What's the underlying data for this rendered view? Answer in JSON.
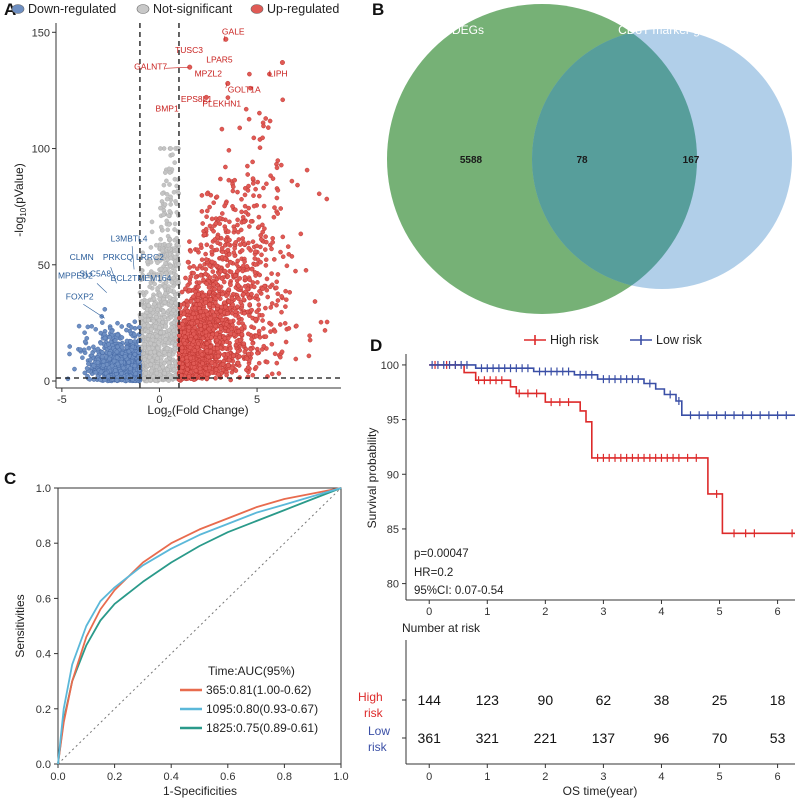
{
  "chart_data": [
    {
      "panel": "A",
      "type": "scatter",
      "title": "",
      "xlabel": "Log2(Fold Change)",
      "ylabel": "-log10(pValue)",
      "xlim": [
        -5.3,
        9.3
      ],
      "ylim": [
        -3,
        154
      ],
      "xticks": [
        -5,
        0,
        5
      ],
      "yticks": [
        0,
        50,
        100,
        150
      ],
      "thresholds": {
        "fc": [
          -1,
          1
        ],
        "p": 1.3
      },
      "legend": [
        {
          "label": "Down-regulated",
          "color": "#6e8fc2"
        },
        {
          "label": "Not-significant",
          "color": "#c8c8c8"
        },
        {
          "label": "Up-regulated",
          "color": "#e05a55"
        }
      ],
      "highlight_points": [
        {
          "x": 6.3,
          "y": 137,
          "color": "#e05a55"
        },
        {
          "x": 3.4,
          "y": 147,
          "color": "#e05a55"
        },
        {
          "x": 1.55,
          "y": 135,
          "color": "#e05a55"
        },
        {
          "x": 3.5,
          "y": 128,
          "color": "#e05a55"
        },
        {
          "x": 2.4,
          "y": 122,
          "color": "#e05a55"
        }
      ],
      "labels_up": [
        {
          "text": "GALE",
          "x": 3.2,
          "y": 149
        },
        {
          "text": "TUSC3",
          "x": 0.8,
          "y": 141
        },
        {
          "text": "LPAR5",
          "x": 2.4,
          "y": 137
        },
        {
          "text": "GALNT7",
          "x": -1.3,
          "y": 134
        },
        {
          "text": "MPZL2",
          "x": 1.8,
          "y": 131
        },
        {
          "text": "LIPH",
          "x": 5.6,
          "y": 131
        },
        {
          "text": "GOLT1A",
          "x": 3.5,
          "y": 124
        },
        {
          "text": "EPS8L1",
          "x": 1.1,
          "y": 120
        },
        {
          "text": "PLEKHN1",
          "x": 2.2,
          "y": 118
        },
        {
          "text": "BMP1",
          "x": -0.2,
          "y": 116
        }
      ],
      "labels_down": [
        {
          "text": "L3MBTL4",
          "x": -2.5,
          "y": 60
        },
        {
          "text": "CLMN",
          "x": -4.6,
          "y": 52
        },
        {
          "text": "PRKCQ",
          "x": -2.9,
          "y": 52
        },
        {
          "text": "LRRC2",
          "x": -1.2,
          "y": 52
        },
        {
          "text": "SLC5A8",
          "x": -4.1,
          "y": 45
        },
        {
          "text": "MPPED2",
          "x": -5.2,
          "y": 44
        },
        {
          "text": "BCL2",
          "x": -2.5,
          "y": 43
        },
        {
          "text": "TMEM164",
          "x": -1.4,
          "y": 43
        },
        {
          "text": "FOXP2",
          "x": -4.8,
          "y": 35
        }
      ]
    },
    {
      "panel": "B",
      "type": "venn",
      "sets": [
        {
          "name": "DEGs",
          "only": 5588,
          "color": "#6aaa6a"
        },
        {
          "name": "CD8T marker genes",
          "only": 167,
          "color": "#a6c8e6"
        }
      ],
      "intersection": 78
    },
    {
      "panel": "C",
      "type": "line",
      "xlabel": "1-Specificities",
      "ylabel": "Sensitivities",
      "xlim": [
        0,
        1
      ],
      "ylim": [
        0,
        1
      ],
      "ticks": [
        "0.0",
        "0.2",
        "0.4",
        "0.6",
        "0.8",
        "1.0"
      ],
      "legend_title": "Time:AUC(95%)",
      "series": [
        {
          "name": "365:0.81(1.00-0.62)",
          "color": "#e86b4e",
          "points": [
            [
              0,
              0
            ],
            [
              0.02,
              0.15
            ],
            [
              0.05,
              0.3
            ],
            [
              0.1,
              0.46
            ],
            [
              0.15,
              0.56
            ],
            [
              0.2,
              0.63
            ],
            [
              0.3,
              0.73
            ],
            [
              0.4,
              0.8
            ],
            [
              0.5,
              0.85
            ],
            [
              0.6,
              0.89
            ],
            [
              0.7,
              0.93
            ],
            [
              0.8,
              0.96
            ],
            [
              0.9,
              0.98
            ],
            [
              1,
              1
            ]
          ]
        },
        {
          "name": "1095:0.80(0.93-0.67)",
          "color": "#5bb8d9",
          "points": [
            [
              0,
              0
            ],
            [
              0.02,
              0.2
            ],
            [
              0.05,
              0.36
            ],
            [
              0.1,
              0.5
            ],
            [
              0.15,
              0.59
            ],
            [
              0.2,
              0.64
            ],
            [
              0.3,
              0.72
            ],
            [
              0.4,
              0.78
            ],
            [
              0.5,
              0.83
            ],
            [
              0.6,
              0.87
            ],
            [
              0.7,
              0.91
            ],
            [
              0.8,
              0.94
            ],
            [
              0.9,
              0.97
            ],
            [
              1,
              1
            ]
          ]
        },
        {
          "name": "1825:0.75(0.89-0.61)",
          "color": "#2a9a8a",
          "points": [
            [
              0,
              0
            ],
            [
              0.02,
              0.16
            ],
            [
              0.05,
              0.3
            ],
            [
              0.1,
              0.43
            ],
            [
              0.15,
              0.52
            ],
            [
              0.2,
              0.58
            ],
            [
              0.3,
              0.66
            ],
            [
              0.4,
              0.73
            ],
            [
              0.5,
              0.79
            ],
            [
              0.6,
              0.84
            ],
            [
              0.7,
              0.88
            ],
            [
              0.8,
              0.92
            ],
            [
              0.9,
              0.96
            ],
            [
              1,
              1
            ]
          ]
        }
      ],
      "reference": "diagonal"
    },
    {
      "panel": "D",
      "type": "line",
      "subtype": "kaplan-meier",
      "xlabel": "OS time(year)",
      "ylabel": "Survival probability",
      "xlim": [
        -0.4,
        6.3
      ],
      "ylim": [
        78.5,
        101
      ],
      "xticks": [
        "0",
        "1",
        "2",
        "3",
        "4",
        "5",
        "6"
      ],
      "yticks": [
        "80",
        "85",
        "90",
        "95",
        "100"
      ],
      "legend": [
        {
          "label": "High risk",
          "color": "#dd2a2a"
        },
        {
          "label": "Low risk",
          "color": "#3a4fa6"
        }
      ],
      "series": [
        {
          "name": "High risk",
          "color": "#dd2a2a",
          "steps": [
            [
              0,
              100
            ],
            [
              0.6,
              99.3
            ],
            [
              0.8,
              98.6
            ],
            [
              1.4,
              98.0
            ],
            [
              1.5,
              97.4
            ],
            [
              2.0,
              96.6
            ],
            [
              2.6,
              95.8
            ],
            [
              2.7,
              94.8
            ],
            [
              2.8,
              91.5
            ],
            [
              4.7,
              91.5
            ],
            [
              4.8,
              88.2
            ],
            [
              5.05,
              84.6
            ],
            [
              6.3,
              84.6
            ]
          ],
          "censor": [
            [
              0.1,
              100
            ],
            [
              0.3,
              100
            ],
            [
              0.45,
              100
            ],
            [
              0.85,
              98.6
            ],
            [
              0.95,
              98.6
            ],
            [
              1.05,
              98.6
            ],
            [
              1.15,
              98.6
            ],
            [
              1.25,
              98.6
            ],
            [
              1.55,
              97.4
            ],
            [
              1.7,
              97.4
            ],
            [
              1.85,
              97.4
            ],
            [
              2.1,
              96.6
            ],
            [
              2.25,
              96.6
            ],
            [
              2.4,
              96.6
            ],
            [
              2.9,
              91.5
            ],
            [
              3.0,
              91.5
            ],
            [
              3.1,
              91.5
            ],
            [
              3.2,
              91.5
            ],
            [
              3.3,
              91.5
            ],
            [
              3.4,
              91.5
            ],
            [
              3.5,
              91.5
            ],
            [
              3.6,
              91.5
            ],
            [
              3.7,
              91.5
            ],
            [
              3.8,
              91.5
            ],
            [
              3.9,
              91.5
            ],
            [
              4.0,
              91.5
            ],
            [
              4.1,
              91.5
            ],
            [
              4.2,
              91.5
            ],
            [
              4.3,
              91.5
            ],
            [
              4.45,
              91.5
            ],
            [
              4.6,
              91.5
            ],
            [
              4.95,
              88.2
            ],
            [
              5.25,
              84.6
            ],
            [
              5.45,
              84.6
            ],
            [
              5.6,
              84.6
            ],
            [
              6.25,
              84.6
            ]
          ]
        },
        {
          "name": "Low risk",
          "color": "#3a4fa6",
          "steps": [
            [
              0,
              100
            ],
            [
              0.8,
              99.7
            ],
            [
              1.8,
              99.4
            ],
            [
              2.5,
              99.1
            ],
            [
              2.9,
              98.7
            ],
            [
              3.7,
              98.3
            ],
            [
              3.9,
              97.8
            ],
            [
              4.05,
              97.3
            ],
            [
              4.25,
              96.7
            ],
            [
              4.35,
              95.4
            ],
            [
              6.3,
              95.4
            ]
          ],
          "censor": [
            [
              0.05,
              100
            ],
            [
              0.15,
              100
            ],
            [
              0.25,
              100
            ],
            [
              0.35,
              100
            ],
            [
              0.45,
              100
            ],
            [
              0.55,
              100
            ],
            [
              0.65,
              100
            ],
            [
              0.9,
              99.7
            ],
            [
              1.0,
              99.7
            ],
            [
              1.1,
              99.7
            ],
            [
              1.2,
              99.7
            ],
            [
              1.3,
              99.7
            ],
            [
              1.4,
              99.7
            ],
            [
              1.5,
              99.7
            ],
            [
              1.6,
              99.7
            ],
            [
              1.7,
              99.7
            ],
            [
              1.9,
              99.4
            ],
            [
              2.0,
              99.4
            ],
            [
              2.1,
              99.4
            ],
            [
              2.2,
              99.4
            ],
            [
              2.3,
              99.4
            ],
            [
              2.4,
              99.4
            ],
            [
              2.6,
              99.1
            ],
            [
              2.7,
              99.1
            ],
            [
              2.8,
              99.1
            ],
            [
              3.0,
              98.7
            ],
            [
              3.1,
              98.7
            ],
            [
              3.2,
              98.7
            ],
            [
              3.3,
              98.7
            ],
            [
              3.4,
              98.7
            ],
            [
              3.5,
              98.7
            ],
            [
              3.6,
              98.7
            ],
            [
              3.8,
              98.3
            ],
            [
              4.15,
              97.3
            ],
            [
              4.3,
              96.7
            ],
            [
              4.5,
              95.4
            ],
            [
              4.65,
              95.4
            ],
            [
              4.8,
              95.4
            ],
            [
              4.95,
              95.4
            ],
            [
              5.1,
              95.4
            ],
            [
              5.25,
              95.4
            ],
            [
              5.4,
              95.4
            ],
            [
              5.55,
              95.4
            ],
            [
              5.7,
              95.4
            ],
            [
              5.85,
              95.4
            ],
            [
              6.0,
              95.4
            ],
            [
              6.15,
              95.4
            ]
          ]
        }
      ],
      "stats": {
        "p": "p=0.00047",
        "hr": "HR=0.2",
        "ci": "95%CI: 0.07-0.54"
      },
      "risk_table": {
        "title": "Number at risk",
        "rows": [
          {
            "label": "High risk",
            "color": "#dd2a2a",
            "values": [
              144,
              123,
              90,
              62,
              38,
              25,
              18
            ]
          },
          {
            "label": "Low risk",
            "color": "#3a4fa6",
            "values": [
              361,
              321,
              221,
              137,
              96,
              70,
              53
            ]
          }
        ]
      }
    }
  ],
  "panels": {
    "a": {
      "letter": "A"
    },
    "b": {
      "letter": "B"
    },
    "c": {
      "letter": "C"
    },
    "d": {
      "letter": "D"
    }
  },
  "text": {
    "a_xlabel_main": "Log",
    "a_xlabel_sub": "2",
    "a_xlabel_tail": "(Fold Change)",
    "a_ylabel_head": "-log",
    "a_ylabel_sub": "10",
    "a_ylabel_tail": "(pValue)",
    "d_risk_high_1": "High",
    "d_risk_high_2": "risk",
    "d_risk_low_1": "Low",
    "d_risk_low_2": "risk"
  }
}
